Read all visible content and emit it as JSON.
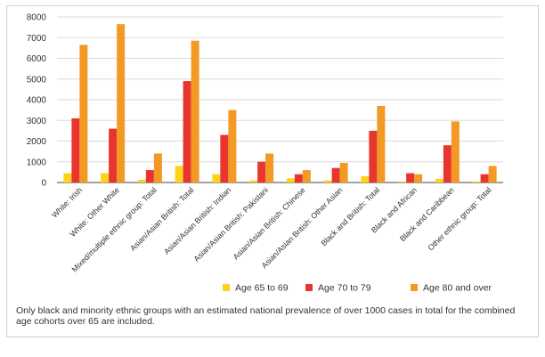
{
  "chart_data": {
    "type": "bar",
    "title": "",
    "xlabel": "",
    "ylabel": "",
    "ylim": [
      0,
      8000
    ],
    "yticks": [
      "0",
      "1000",
      "2000",
      "3000",
      "4000",
      "5000",
      "6000",
      "7000",
      "8000"
    ],
    "grid": true,
    "legend_position": "bottom-right",
    "categories": [
      "White: Irish",
      "White: Other White",
      "Mixed/multiple ethnic group: Total",
      "Asian/Asian British: Total",
      "Asian/Asian British: Indian",
      "Asian/Asian British: Pakistani",
      "Asian/Asian British: Chinese",
      "Asian/Asian British: Other Asian",
      "Black and British: Total",
      "Black and African",
      "Black and Caribbean",
      "Other ethnic group: Total"
    ],
    "series": [
      {
        "name": "Age 65 to 69",
        "color": "#FFD21A",
        "values": [
          450,
          450,
          130,
          800,
          400,
          100,
          200,
          100,
          300,
          50,
          180,
          50
        ]
      },
      {
        "name": "Age 70 to 79",
        "color": "#E8352E",
        "values": [
          3100,
          2600,
          600,
          4900,
          2300,
          1000,
          400,
          700,
          2500,
          450,
          1800,
          400
        ]
      },
      {
        "name": "Age 80 and over",
        "color": "#F39A24",
        "values": [
          6650,
          7650,
          1400,
          6850,
          3500,
          1400,
          600,
          950,
          3700,
          400,
          2950,
          800
        ]
      }
    ]
  },
  "footnote": "Only black and minority ethnic groups with an estimated national prevalence of over 1000 cases in total for the combined age cohorts over 65 are included."
}
